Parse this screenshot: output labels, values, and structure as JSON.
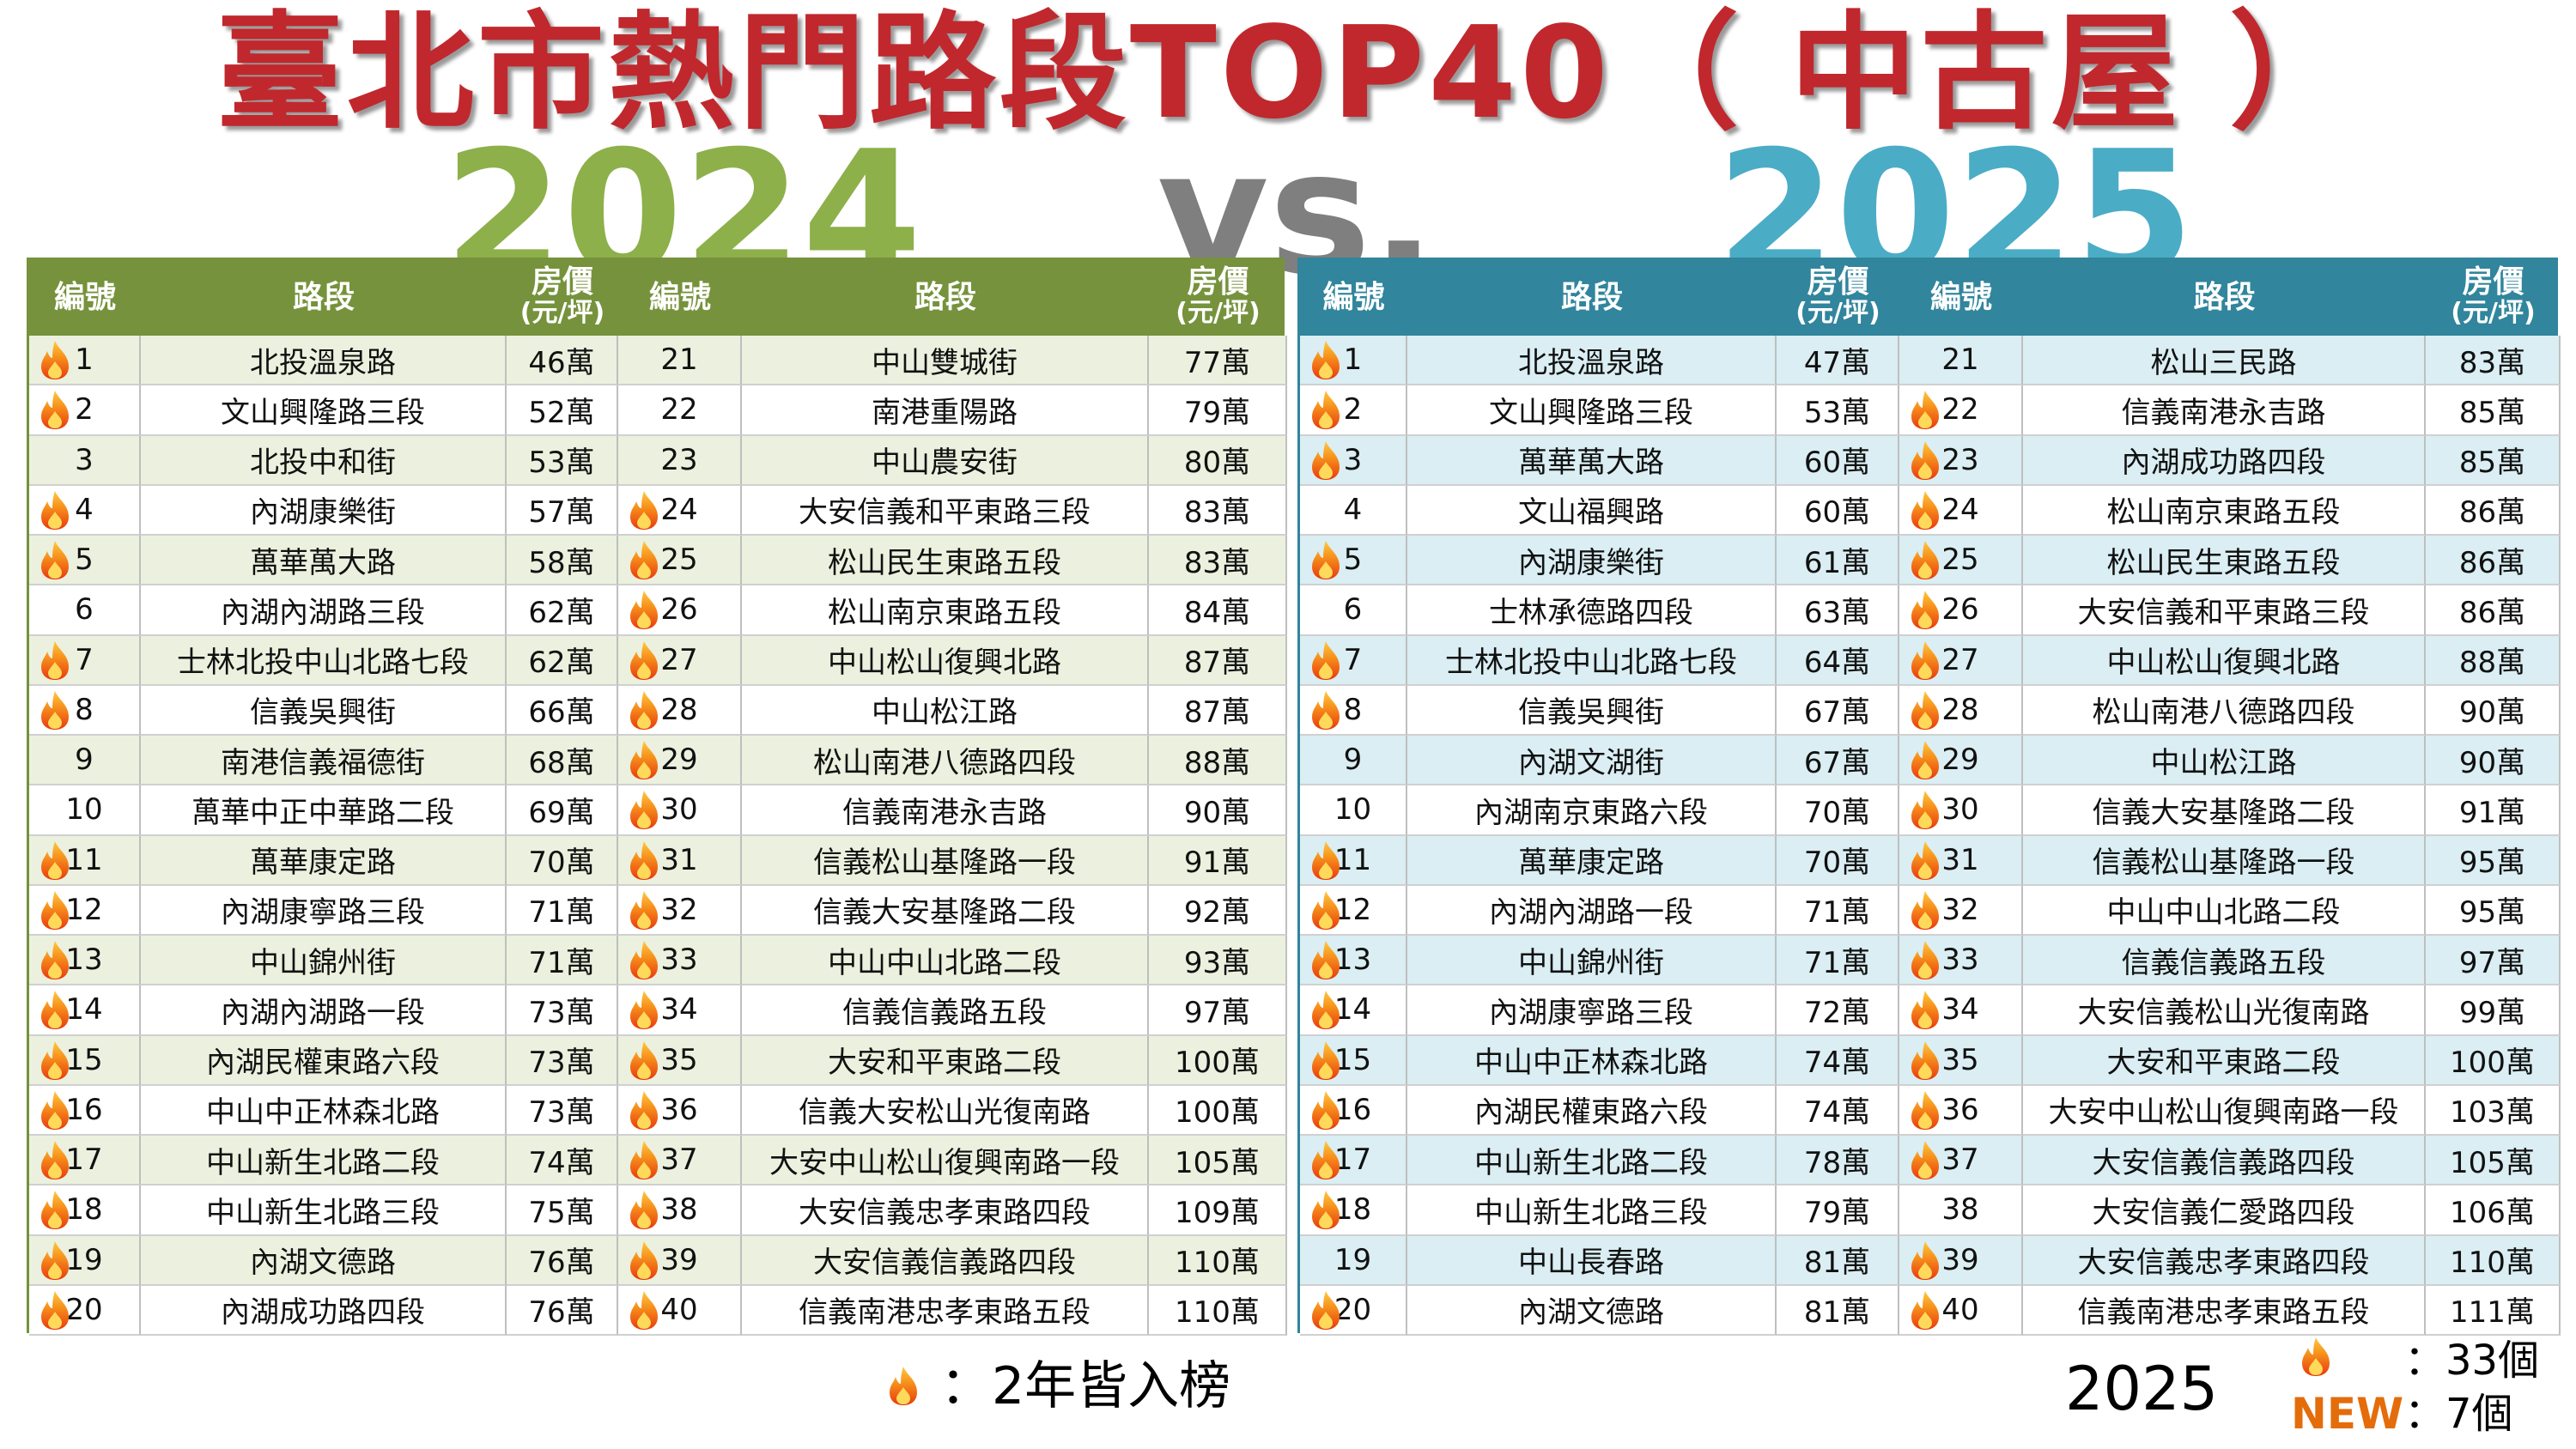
{
  "title": "臺北市熱門路段TOP40（ 中古屋 ）",
  "year_left": "2024",
  "vs": "vs.",
  "year_right": "2025",
  "tables": [
    {
      "header": {
        "rank": "編號",
        "road": "路段",
        "price_line1": "房價",
        "price_line2": "(元/坪)"
      },
      "rows": [
        {
          "rank": 1,
          "road": "北投溫泉路",
          "price": "46萬",
          "hot": true
        },
        {
          "rank": 2,
          "road": "文山興隆路三段",
          "price": "52萬",
          "hot": true
        },
        {
          "rank": 3,
          "road": "北投中和街",
          "price": "53萬",
          "hot": false
        },
        {
          "rank": 4,
          "road": "內湖康樂街",
          "price": "57萬",
          "hot": true
        },
        {
          "rank": 5,
          "road": "萬華萬大路",
          "price": "58萬",
          "hot": true
        },
        {
          "rank": 6,
          "road": "內湖內湖路三段",
          "price": "62萬",
          "hot": false
        },
        {
          "rank": 7,
          "road": "士林北投中山北路七段",
          "price": "62萬",
          "hot": true
        },
        {
          "rank": 8,
          "road": "信義吳興街",
          "price": "66萬",
          "hot": true
        },
        {
          "rank": 9,
          "road": "南港信義福德街",
          "price": "68萬",
          "hot": false
        },
        {
          "rank": 10,
          "road": "萬華中正中華路二段",
          "price": "69萬",
          "hot": false
        },
        {
          "rank": 11,
          "road": "萬華康定路",
          "price": "70萬",
          "hot": true
        },
        {
          "rank": 12,
          "road": "內湖康寧路三段",
          "price": "71萬",
          "hot": true
        },
        {
          "rank": 13,
          "road": "中山錦州街",
          "price": "71萬",
          "hot": true
        },
        {
          "rank": 14,
          "road": "內湖內湖路一段",
          "price": "73萬",
          "hot": true
        },
        {
          "rank": 15,
          "road": "內湖民權東路六段",
          "price": "73萬",
          "hot": true
        },
        {
          "rank": 16,
          "road": "中山中正林森北路",
          "price": "73萬",
          "hot": true
        },
        {
          "rank": 17,
          "road": "中山新生北路二段",
          "price": "74萬",
          "hot": true
        },
        {
          "rank": 18,
          "road": "中山新生北路三段",
          "price": "75萬",
          "hot": true
        },
        {
          "rank": 19,
          "road": "內湖文德路",
          "price": "76萬",
          "hot": true
        },
        {
          "rank": 20,
          "road": "內湖成功路四段",
          "price": "76萬",
          "hot": true
        },
        {
          "rank": 21,
          "road": "中山雙城街",
          "price": "77萬",
          "hot": false
        },
        {
          "rank": 22,
          "road": "南港重陽路",
          "price": "79萬",
          "hot": false
        },
        {
          "rank": 23,
          "road": "中山農安街",
          "price": "80萬",
          "hot": false
        },
        {
          "rank": 24,
          "road": "大安信義和平東路三段",
          "price": "83萬",
          "hot": true
        },
        {
          "rank": 25,
          "road": "松山民生東路五段",
          "price": "83萬",
          "hot": true
        },
        {
          "rank": 26,
          "road": "松山南京東路五段",
          "price": "84萬",
          "hot": true
        },
        {
          "rank": 27,
          "road": "中山松山復興北路",
          "price": "87萬",
          "hot": true
        },
        {
          "rank": 28,
          "road": "中山松江路",
          "price": "87萬",
          "hot": true
        },
        {
          "rank": 29,
          "road": "松山南港八德路四段",
          "price": "88萬",
          "hot": true
        },
        {
          "rank": 30,
          "road": "信義南港永吉路",
          "price": "90萬",
          "hot": true
        },
        {
          "rank": 31,
          "road": "信義松山基隆路一段",
          "price": "91萬",
          "hot": true
        },
        {
          "rank": 32,
          "road": "信義大安基隆路二段",
          "price": "92萬",
          "hot": true
        },
        {
          "rank": 33,
          "road": "中山中山北路二段",
          "price": "93萬",
          "hot": true
        },
        {
          "rank": 34,
          "road": "信義信義路五段",
          "price": "97萬",
          "hot": true
        },
        {
          "rank": 35,
          "road": "大安和平東路二段",
          "price": "100萬",
          "hot": true
        },
        {
          "rank": 36,
          "road": "信義大安松山光復南路",
          "price": "100萬",
          "hot": true
        },
        {
          "rank": 37,
          "road": "大安中山松山復興南路一段",
          "price": "105萬",
          "hot": true
        },
        {
          "rank": 38,
          "road": "大安信義忠孝東路四段",
          "price": "109萬",
          "hot": true
        },
        {
          "rank": 39,
          "road": "大安信義信義路四段",
          "price": "110萬",
          "hot": true
        },
        {
          "rank": 40,
          "road": "信義南港忠孝東路五段",
          "price": "110萬",
          "hot": true
        }
      ]
    },
    {
      "header": {
        "rank": "編號",
        "road": "路段",
        "price_line1": "房價",
        "price_line2": "(元/坪)"
      },
      "rows": [
        {
          "rank": 1,
          "road": "北投溫泉路",
          "price": "47萬",
          "hot": true
        },
        {
          "rank": 2,
          "road": "文山興隆路三段",
          "price": "53萬",
          "hot": true
        },
        {
          "rank": 3,
          "road": "萬華萬大路",
          "price": "60萬",
          "hot": true
        },
        {
          "rank": 4,
          "road": "文山福興路",
          "price": "60萬",
          "hot": false
        },
        {
          "rank": 5,
          "road": "內湖康樂街",
          "price": "61萬",
          "hot": true
        },
        {
          "rank": 6,
          "road": "士林承德路四段",
          "price": "63萬",
          "hot": false
        },
        {
          "rank": 7,
          "road": "士林北投中山北路七段",
          "price": "64萬",
          "hot": true
        },
        {
          "rank": 8,
          "road": "信義吳興街",
          "price": "67萬",
          "hot": true
        },
        {
          "rank": 9,
          "road": "內湖文湖街",
          "price": "67萬",
          "hot": false
        },
        {
          "rank": 10,
          "road": "內湖南京東路六段",
          "price": "70萬",
          "hot": false
        },
        {
          "rank": 11,
          "road": "萬華康定路",
          "price": "70萬",
          "hot": true
        },
        {
          "rank": 12,
          "road": "內湖內湖路一段",
          "price": "71萬",
          "hot": true
        },
        {
          "rank": 13,
          "road": "中山錦州街",
          "price": "71萬",
          "hot": true
        },
        {
          "rank": 14,
          "road": "內湖康寧路三段",
          "price": "72萬",
          "hot": true
        },
        {
          "rank": 15,
          "road": "中山中正林森北路",
          "price": "74萬",
          "hot": true
        },
        {
          "rank": 16,
          "road": "內湖民權東路六段",
          "price": "74萬",
          "hot": true
        },
        {
          "rank": 17,
          "road": "中山新生北路二段",
          "price": "78萬",
          "hot": true
        },
        {
          "rank": 18,
          "road": "中山新生北路三段",
          "price": "79萬",
          "hot": true
        },
        {
          "rank": 19,
          "road": "中山長春路",
          "price": "81萬",
          "hot": false
        },
        {
          "rank": 20,
          "road": "內湖文德路",
          "price": "81萬",
          "hot": true
        },
        {
          "rank": 21,
          "road": "松山三民路",
          "price": "83萬",
          "hot": false
        },
        {
          "rank": 22,
          "road": "信義南港永吉路",
          "price": "85萬",
          "hot": true
        },
        {
          "rank": 23,
          "road": "內湖成功路四段",
          "price": "85萬",
          "hot": true
        },
        {
          "rank": 24,
          "road": "松山南京東路五段",
          "price": "86萬",
          "hot": true
        },
        {
          "rank": 25,
          "road": "松山民生東路五段",
          "price": "86萬",
          "hot": true
        },
        {
          "rank": 26,
          "road": "大安信義和平東路三段",
          "price": "86萬",
          "hot": true
        },
        {
          "rank": 27,
          "road": "中山松山復興北路",
          "price": "88萬",
          "hot": true
        },
        {
          "rank": 28,
          "road": "松山南港八德路四段",
          "price": "90萬",
          "hot": true
        },
        {
          "rank": 29,
          "road": "中山松江路",
          "price": "90萬",
          "hot": true
        },
        {
          "rank": 30,
          "road": "信義大安基隆路二段",
          "price": "91萬",
          "hot": true
        },
        {
          "rank": 31,
          "road": "信義松山基隆路一段",
          "price": "95萬",
          "hot": true
        },
        {
          "rank": 32,
          "road": "中山中山北路二段",
          "price": "95萬",
          "hot": true
        },
        {
          "rank": 33,
          "road": "信義信義路五段",
          "price": "97萬",
          "hot": true
        },
        {
          "rank": 34,
          "road": "大安信義松山光復南路",
          "price": "99萬",
          "hot": true
        },
        {
          "rank": 35,
          "road": "大安和平東路二段",
          "price": "100萬",
          "hot": true
        },
        {
          "rank": 36,
          "road": "大安中山松山復興南路一段",
          "price": "103萬",
          "hot": true
        },
        {
          "rank": 37,
          "road": "大安信義信義路四段",
          "price": "105萬",
          "hot": true
        },
        {
          "rank": 38,
          "road": "大安信義仁愛路四段",
          "price": "106萬",
          "hot": false
        },
        {
          "rank": 39,
          "road": "大安信義忠孝東路四段",
          "price": "110萬",
          "hot": true
        },
        {
          "rank": 40,
          "road": "信義南港忠孝東路五段",
          "price": "111萬",
          "hot": true
        }
      ]
    }
  ],
  "legend": {
    "text": "：2年皆入榜"
  },
  "summary": {
    "year": "2025",
    "hot_count": "：33個",
    "new_label": "NEW",
    "new_count": "：7個"
  }
}
